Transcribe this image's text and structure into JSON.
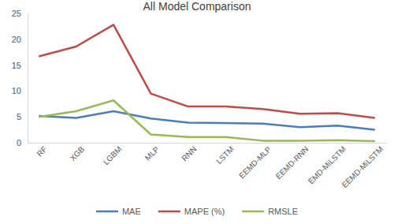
{
  "chart_data": {
    "type": "line",
    "title": "All Model Comparison",
    "categories": [
      "RF",
      "XGB",
      "LGBM",
      "MLP",
      "RNN",
      "LSTM",
      "EEMD-MLP",
      "EEMD-RNN",
      "EMD-MiLSTM",
      "EEMD-MiLSTM"
    ],
    "series": [
      {
        "name": "MAE",
        "color": "#4a7ebb",
        "values": [
          5.2,
          4.8,
          6.1,
          4.7,
          3.9,
          3.8,
          3.7,
          3.0,
          3.3,
          2.5
        ]
      },
      {
        "name": "MAPE (%)",
        "color": "#be4b48",
        "values": [
          16.7,
          18.6,
          22.8,
          9.5,
          7.0,
          7.0,
          6.5,
          5.6,
          5.7,
          4.8
        ]
      },
      {
        "name": "RMSLE",
        "color": "#98b954",
        "values": [
          5.0,
          6.1,
          8.2,
          1.6,
          1.1,
          1.1,
          0.4,
          0.4,
          0.5,
          0.3
        ]
      }
    ],
    "ylim": [
      0,
      25
    ],
    "yticks": [
      0,
      5,
      10,
      15,
      20,
      25
    ],
    "grid": false,
    "legend": "bottom"
  }
}
